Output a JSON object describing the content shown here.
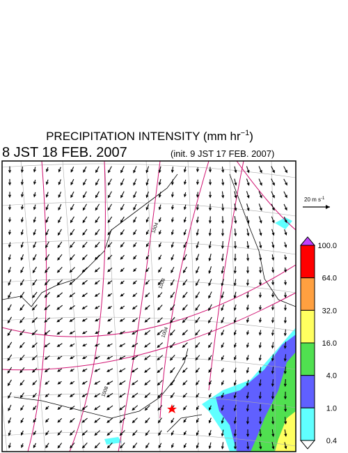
{
  "header": {
    "title": "PRECIPITATION INTENSITY (mm hr",
    "title_exp": "−1",
    "title_end": ")",
    "valid_time": "8 JST 18 FEB. 2007",
    "init_time": "(init. 9 JST 17 FEB. 2007)"
  },
  "wind_legend": {
    "label": "20 m s",
    "label_exp": "-1"
  },
  "colorbar": {
    "labels": [
      "100.0",
      "64.0",
      "32.0",
      "16.0",
      "4.0",
      "1.0",
      "0.4"
    ],
    "colors": [
      "#ff0000",
      "#ffa040",
      "#ffff60",
      "#50e050",
      "#6060ff",
      "#60ffff"
    ],
    "over_color": "#c040ff",
    "under_color": "#ffffff"
  },
  "isobar_labels": [
    "1004",
    "1008",
    "1004",
    "1008"
  ]
}
